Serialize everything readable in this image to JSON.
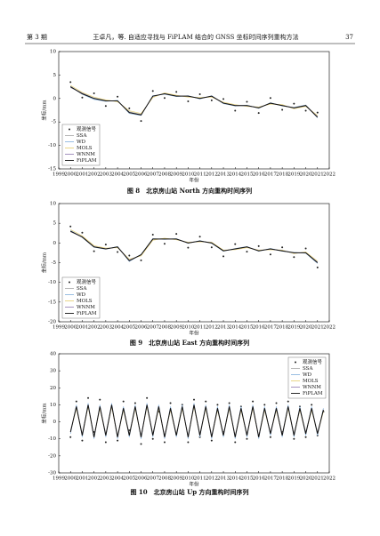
{
  "header": {
    "left": "第 3 期",
    "center": "王卓凡，等. 自适应寻找与 FiPLAM 结合的 GNSS 坐标时间序列重构方法",
    "right": "37"
  },
  "chart_data": [
    {
      "type": "line",
      "caption": "图 8　北京房山站 North 方向重构时间序列",
      "y_label": "坐标/mm",
      "x_label": "年份",
      "xlim": [
        1999,
        2022
      ],
      "xticks": [
        1999,
        2000,
        2001,
        2002,
        2003,
        2004,
        2005,
        2006,
        2007,
        2008,
        2009,
        2010,
        2011,
        2012,
        2013,
        2014,
        2015,
        2016,
        2017,
        2018,
        2019,
        2020,
        2021,
        2022
      ],
      "ylim": [
        -15,
        10
      ],
      "yticks": [
        -15,
        -10,
        -5,
        0,
        5,
        10
      ],
      "legend": "lower left",
      "x": [
        2000,
        2001,
        2002,
        2003,
        2004,
        2005,
        2006,
        2007,
        2008,
        2009,
        2010,
        2011,
        2012,
        2013,
        2014,
        2015,
        2016,
        2017,
        2018,
        2019,
        2020,
        2021
      ],
      "series": [
        {
          "name": "观测信号",
          "color": "#222222",
          "marker": "dot",
          "values": [
            3.5,
            0.2,
            1.1,
            -1.6,
            0.4,
            -2.1,
            -4.8,
            1.6,
            0.1,
            1.4,
            -0.6,
            0.9,
            -0.4,
            -0.1,
            -2.6,
            -0.7,
            -3.1,
            0.1,
            -2.4,
            -1.1,
            -2.6,
            -3.0
          ]
        },
        {
          "name": "SSA",
          "color": "#b0b0b0",
          "values": [
            2.3,
            1.2,
            0.1,
            -0.4,
            -0.6,
            -2.8,
            -3.4,
            0.4,
            1.1,
            0.6,
            0.4,
            0.1,
            0.4,
            -0.9,
            -1.4,
            -1.6,
            -1.9,
            -1.1,
            -1.4,
            -2.1,
            -1.6,
            -3.8
          ]
        },
        {
          "name": "WD",
          "color": "#8fb8e0",
          "values": [
            2.6,
            0.9,
            -0.2,
            -0.6,
            -0.4,
            -3.2,
            -3.6,
            0.6,
            0.9,
            0.4,
            0.6,
            -0.1,
            0.6,
            -1.1,
            -1.6,
            -1.4,
            -2.1,
            -0.9,
            -1.6,
            -1.9,
            -1.4,
            -4.1
          ]
        },
        {
          "name": "MOLS",
          "color": "#e8d27a",
          "values": [
            2.8,
            1.3,
            0.3,
            -0.3,
            -0.7,
            -2.6,
            -3.2,
            0.2,
            1.2,
            0.7,
            0.3,
            0.2,
            0.3,
            -0.8,
            -1.3,
            -1.7,
            -1.8,
            -1.2,
            -1.3,
            -2.2,
            -1.7,
            -3.6
          ]
        },
        {
          "name": "WNNM",
          "color": "#9a86b8",
          "values": [
            2.4,
            1.1,
            0.0,
            -0.5,
            -0.5,
            -3.0,
            -3.5,
            0.5,
            1.0,
            0.5,
            0.5,
            0.0,
            0.5,
            -1.0,
            -1.5,
            -1.5,
            -2.0,
            -1.0,
            -1.5,
            -2.0,
            -1.5,
            -3.9
          ]
        },
        {
          "name": "FiPLAM",
          "color": "#111111",
          "values": [
            2.5,
            1,
            0,
            -0.5,
            -0.5,
            -3,
            -3.5,
            0.5,
            1,
            0.5,
            0.5,
            0,
            0.5,
            -1,
            -1.5,
            -1.5,
            -2,
            -1,
            -1.5,
            -2,
            -1.5,
            -4
          ]
        }
      ]
    },
    {
      "type": "line",
      "caption": "图 9　北京房山站 East 方向重构时间序列",
      "y_label": "坐标/mm",
      "x_label": "年份",
      "xlim": [
        1999,
        2022
      ],
      "xticks": [
        1999,
        2000,
        2001,
        2002,
        2003,
        2004,
        2005,
        2006,
        2007,
        2008,
        2009,
        2010,
        2011,
        2012,
        2013,
        2014,
        2015,
        2016,
        2017,
        2018,
        2019,
        2020,
        2021,
        2022
      ],
      "ylim": [
        -20,
        10
      ],
      "yticks": [
        -20,
        -15,
        -10,
        -5,
        0,
        5,
        10
      ],
      "legend": "lower left",
      "x": [
        2000,
        2001,
        2002,
        2003,
        2004,
        2005,
        2006,
        2007,
        2008,
        2009,
        2010,
        2011,
        2012,
        2013,
        2014,
        2015,
        2016,
        2017,
        2018,
        2019,
        2020,
        2021
      ],
      "series": [
        {
          "name": "观测信号",
          "color": "#222222",
          "marker": "dot",
          "values": [
            4.2,
            2.6,
            -2.1,
            -0.4,
            -2.3,
            -3.2,
            -4.4,
            2.1,
            -0.2,
            2.3,
            -1.2,
            1.6,
            -1.1,
            -3.4,
            -0.3,
            -2.2,
            -0.8,
            -2.9,
            -1.1,
            -3.6,
            -1.4,
            -6.2
          ]
        },
        {
          "name": "SSA",
          "color": "#b0b0b0",
          "values": [
            2.8,
            1.6,
            -0.9,
            -1.4,
            -1.1,
            -4.3,
            -3.1,
            0.9,
            1.1,
            0.9,
            0.1,
            0.4,
            0.1,
            -1.9,
            -1.6,
            -1.1,
            -1.9,
            -1.6,
            -1.9,
            -2.6,
            -2.4,
            -4.8
          ]
        },
        {
          "name": "WD",
          "color": "#8fb8e0",
          "values": [
            3.2,
            1.4,
            -1.1,
            -1.6,
            -0.9,
            -4.7,
            -2.9,
            1.1,
            0.9,
            1.1,
            -0.1,
            0.6,
            -0.1,
            -2.1,
            -1.4,
            -0.9,
            -2.1,
            -1.4,
            -2.1,
            -2.4,
            -2.6,
            -5.2
          ]
        },
        {
          "name": "MOLS",
          "color": "#e8d27a",
          "values": [
            3.4,
            1.8,
            -0.7,
            -1.3,
            -1.2,
            -4.1,
            -3.3,
            0.7,
            1.2,
            0.8,
            0.2,
            0.3,
            0.2,
            -1.8,
            -1.7,
            -1.2,
            -1.8,
            -1.7,
            -1.8,
            -2.7,
            -2.3,
            -4.6
          ]
        },
        {
          "name": "WNNM",
          "color": "#9a86b8",
          "values": [
            2.9,
            1.5,
            -1.0,
            -1.5,
            -1.0,
            -4.4,
            -3.0,
            1.0,
            1.0,
            1.0,
            0.0,
            0.5,
            0.0,
            -2.0,
            -1.5,
            -1.0,
            -2.0,
            -1.5,
            -2.0,
            -2.5,
            -2.5,
            -4.9
          ]
        },
        {
          "name": "FiPLAM",
          "color": "#111111",
          "values": [
            3,
            1.5,
            -1,
            -1.5,
            -1,
            -4.5,
            -3,
            1,
            1,
            1,
            0,
            0.5,
            0,
            -2,
            -1.5,
            -1,
            -2,
            -1.5,
            -2,
            -2.5,
            -2.5,
            -5
          ]
        }
      ]
    },
    {
      "type": "line",
      "caption": "图 10　北京房山站 Up 方向重构时间序列",
      "y_label": "坐标/mm",
      "x_label": "年份",
      "xlim": [
        1999,
        2022
      ],
      "xticks": [
        1999,
        2000,
        2001,
        2002,
        2003,
        2004,
        2005,
        2006,
        2007,
        2008,
        2009,
        2010,
        2011,
        2012,
        2013,
        2014,
        2015,
        2016,
        2017,
        2018,
        2019,
        2020,
        2021,
        2022
      ],
      "ylim": [
        -30,
        40
      ],
      "yticks": [
        -30,
        -20,
        -10,
        0,
        10,
        20,
        30,
        40
      ],
      "legend": "upper right",
      "x": [
        2000,
        2000.5,
        2001,
        2001.5,
        2002,
        2002.5,
        2003,
        2003.5,
        2004,
        2004.5,
        2005,
        2005.5,
        2006,
        2006.5,
        2007,
        2007.5,
        2008,
        2008.5,
        2009,
        2009.5,
        2010,
        2010.5,
        2011,
        2011.5,
        2012,
        2012.5,
        2013,
        2013.5,
        2014,
        2014.5,
        2015,
        2015.5,
        2016,
        2016.5,
        2017,
        2017.5,
        2018,
        2018.5,
        2019,
        2019.5,
        2020,
        2020.5,
        2021,
        2021.5
      ],
      "series": [
        {
          "name": "观测信号",
          "color": "#222222",
          "marker": "dot",
          "values": [
            -9,
            12,
            -11,
            14,
            -6,
            13,
            -12,
            8,
            -11,
            12,
            -5,
            11,
            -13,
            14,
            -10,
            6,
            -12,
            11,
            -7,
            10,
            -12,
            13,
            -9,
            12,
            -11,
            10,
            -6,
            11,
            -12,
            9,
            -10,
            12,
            -8,
            10,
            -9,
            11,
            -6,
            12,
            -10,
            9,
            -9,
            10,
            -8,
            6
          ]
        },
        {
          "name": "SSA",
          "color": "#b0b0b0",
          "values": [
            -5,
            8,
            -7,
            9,
            -8,
            8,
            -7,
            9,
            -8,
            7,
            -7,
            8,
            -8,
            9,
            -7,
            8,
            -8,
            7,
            -7,
            8,
            -8,
            9,
            -7,
            8,
            -8,
            7,
            -7,
            8,
            -8,
            7,
            -7,
            8,
            -8,
            7,
            -6,
            7,
            -7,
            8,
            -7,
            7,
            -6,
            7,
            -6,
            6
          ]
        },
        {
          "name": "WD",
          "color": "#8fb8e0",
          "values": [
            -7,
            10,
            -9,
            11,
            -10,
            10,
            -9,
            11,
            -10,
            9,
            -9,
            10,
            -10,
            11,
            -9,
            10,
            -10,
            9,
            -9,
            10,
            -10,
            11,
            -9,
            10,
            -10,
            9,
            -9,
            10,
            -10,
            9,
            -9,
            10,
            -10,
            9,
            -8,
            9,
            -9,
            10,
            -9,
            9,
            -8,
            9,
            -8,
            8
          ]
        },
        {
          "name": "MOLS",
          "color": "#e8d27a",
          "values": [
            -6,
            8,
            -8,
            9,
            -9,
            8,
            -8,
            9,
            -9,
            7,
            -8,
            8,
            -9,
            9,
            -8,
            8,
            -9,
            7,
            -8,
            8,
            -9,
            9,
            -8,
            8,
            -9,
            7,
            -8,
            8,
            -9,
            7,
            -8,
            8,
            -9,
            7,
            -7,
            7,
            -8,
            8,
            -8,
            7,
            -7,
            7,
            -7,
            6
          ]
        },
        {
          "name": "WNNM",
          "color": "#9a86b8",
          "values": [
            -6,
            9,
            -8,
            10,
            -9,
            9,
            -8,
            10,
            -9,
            8,
            -8,
            9,
            -9,
            10,
            -8,
            9,
            -9,
            8,
            -8,
            9,
            -9,
            10,
            -8,
            9,
            -9,
            8,
            -8,
            9,
            -9,
            8,
            -8,
            9,
            -9,
            8,
            -7,
            8,
            -8,
            9,
            -8,
            8,
            -7,
            8,
            -7,
            7
          ]
        },
        {
          "name": "FiPLAM",
          "color": "#111111",
          "values": [
            -6,
            9,
            -8,
            10,
            -9,
            9,
            -8,
            10,
            -9,
            8,
            -8,
            9,
            -9,
            10,
            -8,
            9,
            -9,
            8,
            -8,
            9,
            -9,
            10,
            -8,
            9,
            -9,
            8,
            -8,
            9,
            -9,
            8,
            -8,
            9,
            -9,
            8,
            -7,
            8,
            -8,
            9,
            -8,
            8,
            -7,
            8,
            -7,
            7
          ]
        }
      ]
    }
  ]
}
